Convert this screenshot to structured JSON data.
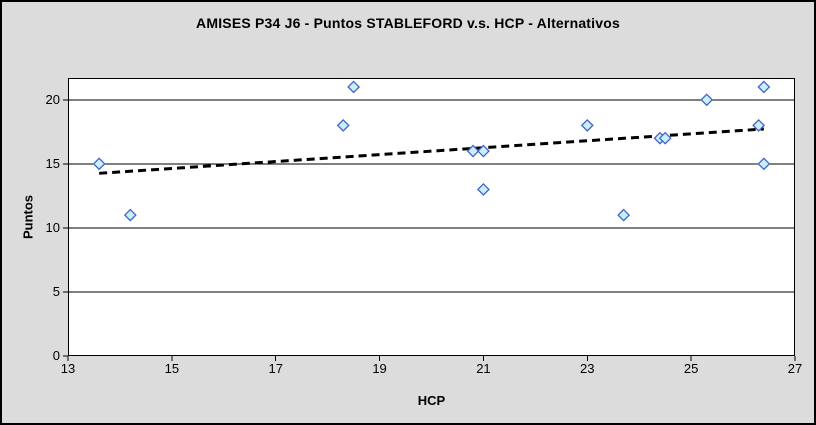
{
  "window": {
    "background_color": "#DCDCDC",
    "frame_border_color": "#000000"
  },
  "chart_data": {
    "type": "scatter",
    "title": "AMISES P34 J6 - Puntos STABLEFORD v.s. HCP - Alternativos",
    "xlabel": "HCP",
    "ylabel": "Puntos",
    "xlim": [
      13,
      27
    ],
    "ylim": [
      0,
      21.7
    ],
    "x_ticks": [
      13,
      15,
      17,
      19,
      21,
      23,
      25,
      27
    ],
    "y_ticks": [
      0,
      5,
      10,
      15,
      20
    ],
    "gridlines": "horizontal-major",
    "legend_position": "none",
    "plot_background": "#FFFFFF",
    "gridline_color": "#000000",
    "series": [
      {
        "name": "Puntos STABLEFORD",
        "marker": "diamond",
        "marker_fill": "#CBEEFB",
        "marker_stroke": "#3F63C9",
        "points": [
          [
            13.6,
            15
          ],
          [
            14.2,
            11
          ],
          [
            18.3,
            18
          ],
          [
            18.5,
            21
          ],
          [
            20.8,
            16
          ],
          [
            21.0,
            16
          ],
          [
            21.0,
            13
          ],
          [
            23.0,
            18
          ],
          [
            23.7,
            11
          ],
          [
            24.4,
            17
          ],
          [
            24.5,
            17
          ],
          [
            25.3,
            20
          ],
          [
            26.3,
            18
          ],
          [
            26.4,
            21
          ],
          [
            26.4,
            15
          ]
        ]
      }
    ],
    "trendline": {
      "style": "dashed",
      "color": "#000000",
      "x1": 13.6,
      "y1": 14.26,
      "x2": 26.4,
      "y2": 17.72
    }
  }
}
